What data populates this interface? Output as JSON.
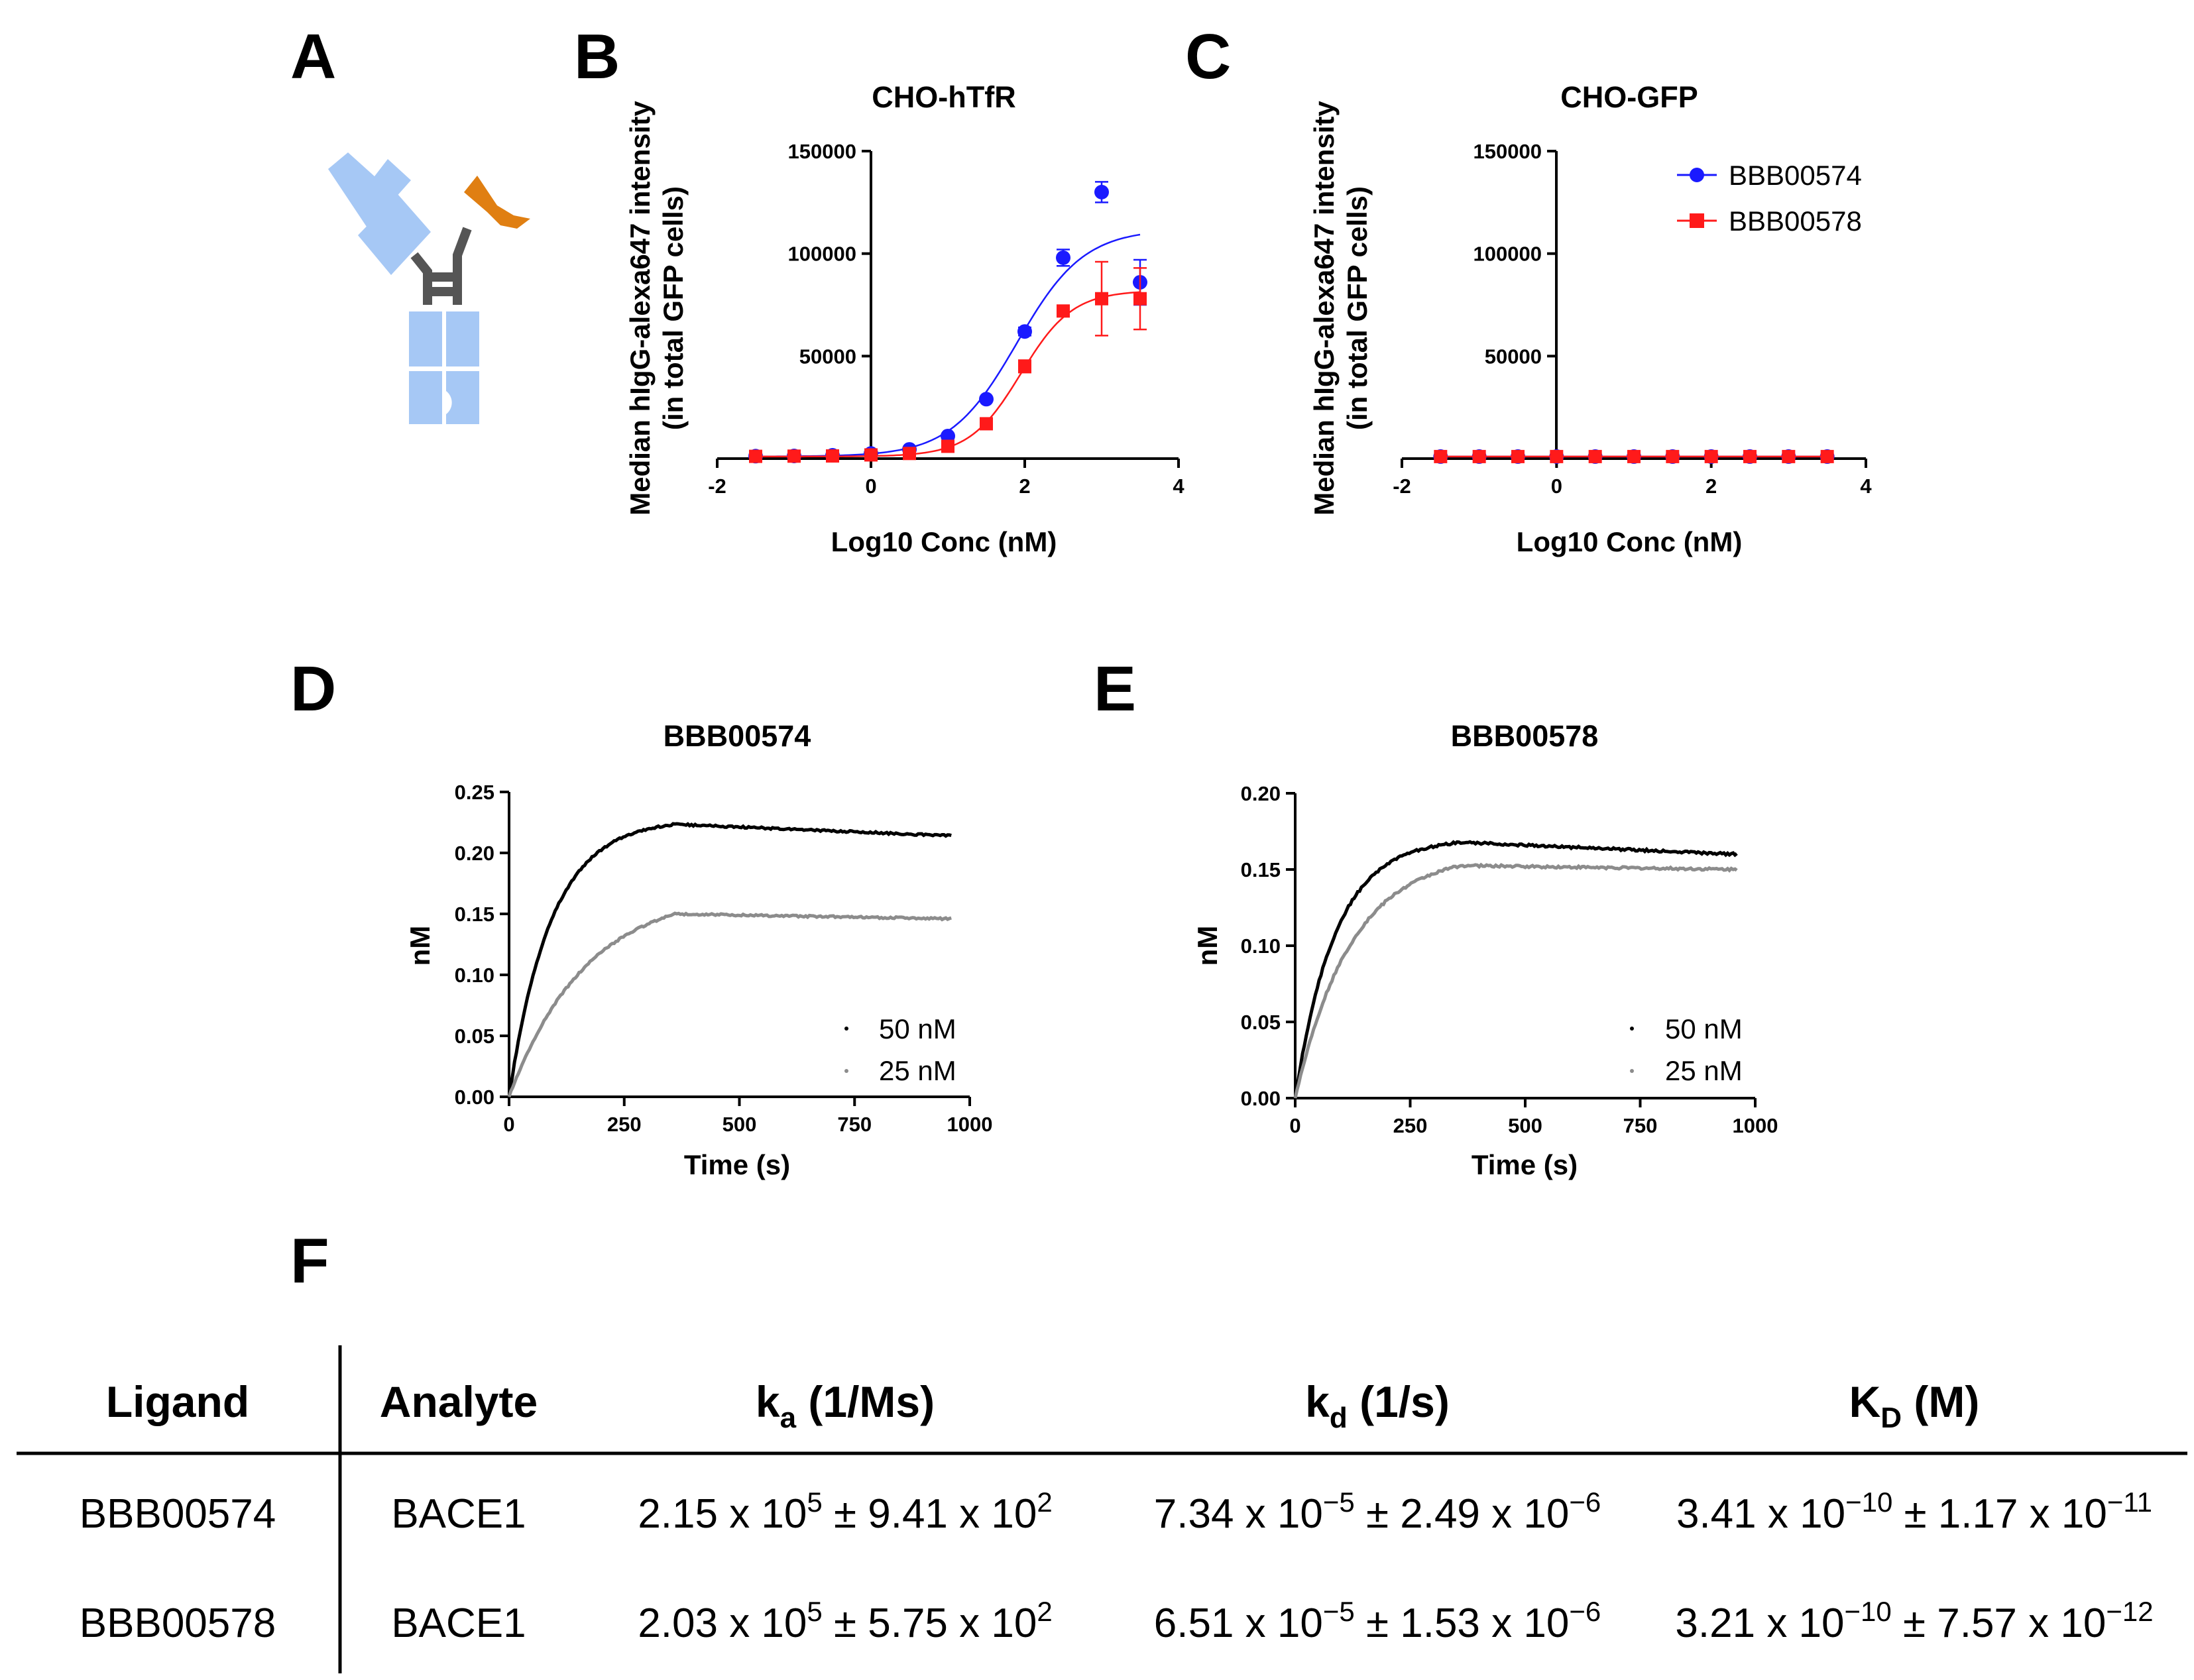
{
  "panel_labels": {
    "A": "A",
    "B": "B",
    "C": "C",
    "D": "D",
    "E": "E",
    "F": "F"
  },
  "colors": {
    "BBB00574": "#1a1aff",
    "BBB00578": "#ff1a1a",
    "c50": "#000000",
    "c25": "#8c8c8c",
    "antibody_blue": "#a6c8f5",
    "antibody_orange": "#e07f12",
    "hinge": "#555555"
  },
  "chart_data": [
    {
      "id": "B",
      "type": "scatter",
      "title": "CHO-hTfR",
      "xlabel": "Log10 Conc (nM)",
      "ylabel_lines": [
        "Median hIgG-alexa647 intensity",
        "(in total GFP cells)"
      ],
      "xlim": [
        -2,
        4
      ],
      "ylim": [
        0,
        150000
      ],
      "xticks": [
        -2,
        0,
        2,
        4
      ],
      "yticks": [
        50000,
        100000,
        150000
      ],
      "ytick_labels": [
        "50000",
        "100000",
        "150000"
      ],
      "series": [
        {
          "name": "BBB00574",
          "x": [
            -1.5,
            -1,
            -0.5,
            0,
            0.5,
            1,
            1.5,
            2,
            2.5,
            3,
            3.5
          ],
          "y": [
            1200,
            1300,
            1600,
            2500,
            4500,
            11000,
            29000,
            62000,
            98000,
            130000,
            86000
          ],
          "err": [
            0,
            0,
            0,
            0,
            0,
            0,
            0,
            2000,
            4000,
            5000,
            11000
          ],
          "fit": {
            "bottom": 1000,
            "top": 112000,
            "log_ec50": 1.9,
            "hill": 1.0
          }
        },
        {
          "name": "BBB00578",
          "x": [
            -1.5,
            -1,
            -0.5,
            0,
            0.5,
            1,
            1.5,
            2,
            2.5,
            3,
            3.5
          ],
          "y": [
            1100,
            1200,
            1300,
            1800,
            2500,
            6000,
            17000,
            45000,
            72000,
            78000,
            78000
          ],
          "err": [
            0,
            0,
            0,
            0,
            0,
            0,
            0,
            3000,
            0,
            18000,
            15000
          ],
          "fit": {
            "bottom": 1000,
            "top": 82000,
            "log_ec50": 1.95,
            "hill": 1.3
          }
        }
      ]
    },
    {
      "id": "C",
      "type": "scatter",
      "title": "CHO-GFP",
      "xlabel": "Log10 Conc (nM)",
      "ylabel_lines": [
        "Median hIgG-alexa647 intensity",
        "(in total GFP cells)"
      ],
      "xlim": [
        -2,
        4
      ],
      "ylim": [
        0,
        150000
      ],
      "xticks": [
        -2,
        0,
        2,
        4
      ],
      "yticks": [
        50000,
        100000,
        150000
      ],
      "ytick_labels": [
        "50000",
        "100000",
        "150000"
      ],
      "legend": [
        "BBB00574",
        "BBB00578"
      ],
      "series": [
        {
          "name": "BBB00574",
          "x": [
            -1.5,
            -1,
            -0.5,
            0,
            0.5,
            1,
            1.5,
            2,
            2.5,
            3,
            3.5
          ],
          "y": [
            1000,
            1000,
            1000,
            1000,
            1000,
            1000,
            1000,
            1000,
            1000,
            1000,
            1000
          ]
        },
        {
          "name": "BBB00578",
          "x": [
            -1.5,
            -1,
            -0.5,
            0,
            0.5,
            1,
            1.5,
            2,
            2.5,
            3,
            3.5
          ],
          "y": [
            1000,
            1000,
            1000,
            1000,
            1000,
            1000,
            1000,
            1000,
            1000,
            1000,
            1000
          ]
        }
      ]
    },
    {
      "id": "D",
      "type": "line",
      "title": "BBB00574",
      "xlabel": "Time (s)",
      "ylabel": "nM",
      "xlim": [
        0,
        1000
      ],
      "ylim": [
        0,
        0.25
      ],
      "xticks": [
        0,
        250,
        500,
        750,
        1000
      ],
      "yticks": [
        0,
        0.05,
        0.1,
        0.15,
        0.2,
        0.25
      ],
      "ytick_labels": [
        "0.00",
        "0.05",
        "0.10",
        "0.15",
        "0.20",
        "0.25"
      ],
      "legend": [
        "50 nM",
        "25 nM"
      ],
      "series": [
        {
          "name": "50 nM",
          "assoc_end": 360,
          "end_time": 960,
          "plateau": 0.2278,
          "k_obs": 0.011,
          "end_value": 0.214
        },
        {
          "name": "25 nM",
          "assoc_end": 360,
          "end_time": 960,
          "plateau": 0.1695,
          "k_obs": 0.006,
          "end_value": 0.146
        }
      ]
    },
    {
      "id": "E",
      "type": "line",
      "title": "BBB00578",
      "xlabel": "Time (s)",
      "ylabel": "nM",
      "xlim": [
        0,
        1000
      ],
      "ylim": [
        0,
        0.2
      ],
      "xticks": [
        0,
        250,
        500,
        750,
        1000
      ],
      "yticks": [
        0,
        0.05,
        0.1,
        0.15,
        0.2
      ],
      "ytick_labels": [
        "0.00",
        "0.05",
        "0.10",
        "0.15",
        "0.20"
      ],
      "legend": [
        "50 nM",
        "25 nM"
      ],
      "series": [
        {
          "name": "50 nM",
          "assoc_end": 360,
          "end_time": 960,
          "plateau": 0.1705,
          "k_obs": 0.0115,
          "end_value": 0.16
        },
        {
          "name": "25 nM",
          "assoc_end": 360,
          "end_time": 960,
          "plateau": 0.161,
          "k_obs": 0.0082,
          "end_value": 0.15
        }
      ]
    },
    {
      "id": "F",
      "type": "table",
      "headers": [
        {
          "main": "Ligand",
          "sub": "",
          "rest": ""
        },
        {
          "main": "Analyte",
          "sub": "",
          "rest": ""
        },
        {
          "main": "k",
          "sub": "a",
          "rest": " (1/Ms)"
        },
        {
          "main": "k",
          "sub": "d",
          "rest": " (1/s)"
        },
        {
          "main": "K",
          "sub": "D",
          "rest": " (M)"
        }
      ],
      "rows": [
        {
          "ligand": "BBB00574",
          "analyte": "BACE1",
          "ka": {
            "m": "2.15",
            "e": "5",
            "pm": "9.41",
            "pe": "2"
          },
          "kd": {
            "m": "7.34",
            "e": "−5",
            "pm": "2.49",
            "pe": "−6"
          },
          "KD": {
            "m": "3.41",
            "e": "−10",
            "pm": "1.17",
            "pe": "−11"
          }
        },
        {
          "ligand": "BBB00578",
          "analyte": "BACE1",
          "ka": {
            "m": "2.03",
            "e": "5",
            "pm": "5.75",
            "pe": "2"
          },
          "kd": {
            "m": "6.51",
            "e": "−5",
            "pm": "1.53",
            "pe": "−6"
          },
          "KD": {
            "m": "3.21",
            "e": "−10",
            "pm": "7.57",
            "pe": "−12"
          }
        }
      ]
    }
  ]
}
